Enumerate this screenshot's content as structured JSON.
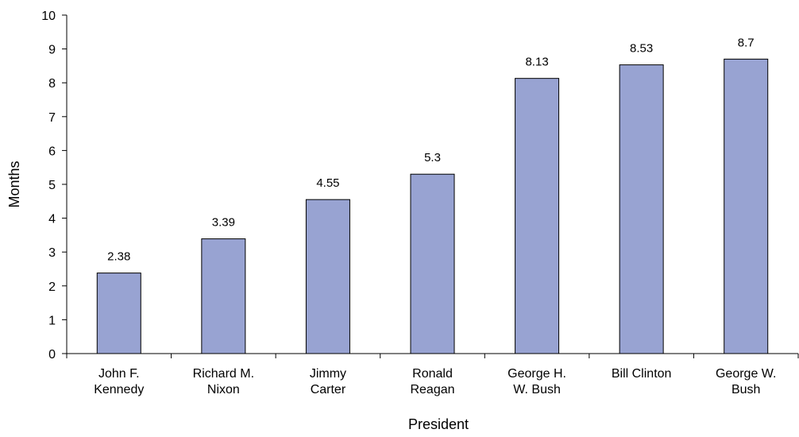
{
  "chart_data": {
    "type": "bar",
    "categories": [
      [
        "John F.",
        "Kennedy"
      ],
      [
        "Richard M.",
        "Nixon"
      ],
      [
        "Jimmy",
        "Carter"
      ],
      [
        "Ronald",
        "Reagan"
      ],
      [
        "George H.",
        "W. Bush"
      ],
      [
        "Bill Clinton"
      ],
      [
        "George W.",
        "Bush"
      ]
    ],
    "values": [
      2.38,
      3.39,
      4.55,
      5.3,
      8.13,
      8.53,
      8.7
    ],
    "value_labels": [
      "2.38",
      "3.39",
      "4.55",
      "5.3",
      "8.13",
      "8.53",
      "8.7"
    ],
    "xlabel": "President",
    "ylabel": "Months",
    "ylim": [
      0,
      10
    ],
    "yticks": [
      0,
      1,
      2,
      3,
      4,
      5,
      6,
      7,
      8,
      9,
      10
    ],
    "grid": false,
    "legend": "none",
    "bar_color": "#98a3d2",
    "bar_edge_color": "#000000"
  }
}
